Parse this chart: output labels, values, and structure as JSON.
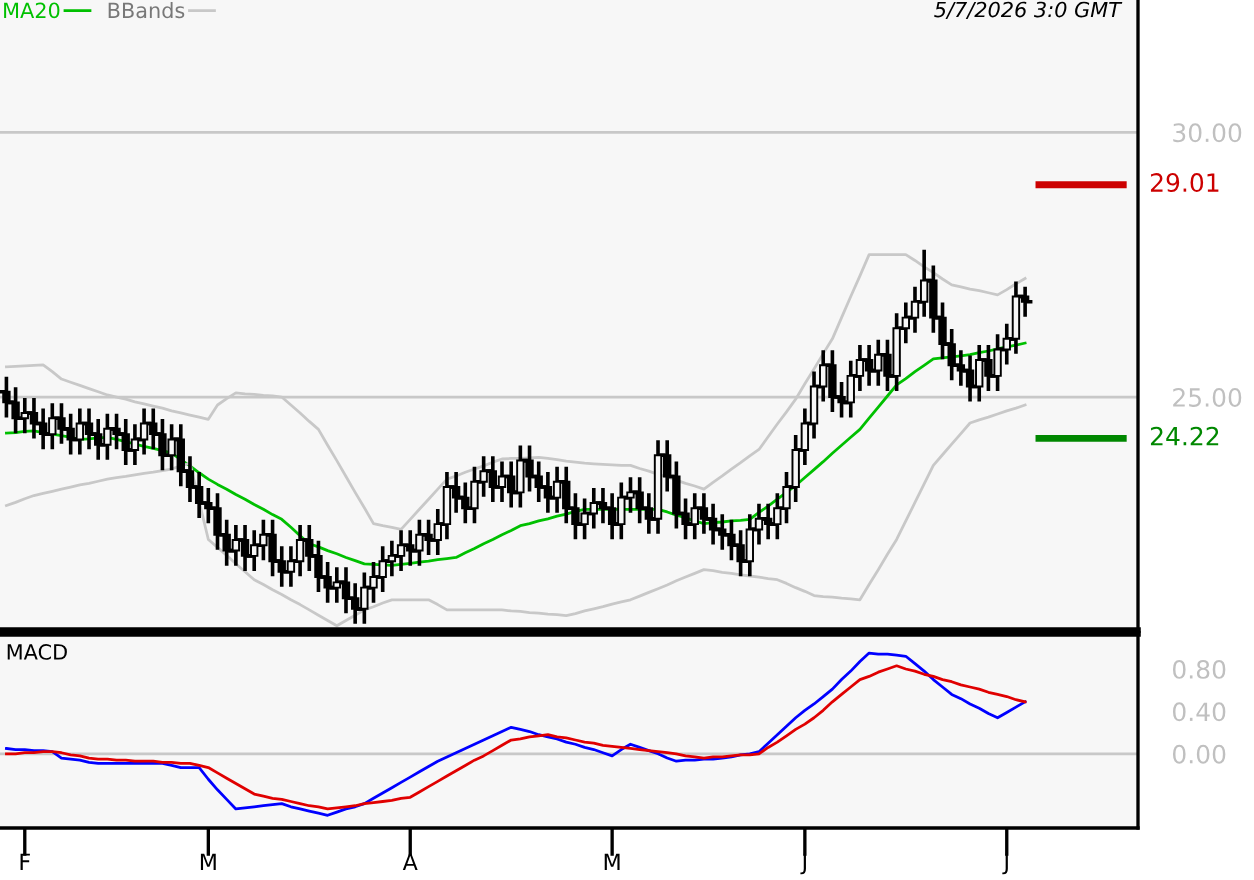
{
  "chart_data": [
    {
      "type": "candlestick",
      "categories": [
        null,
        null,
        null,
        null,
        null,
        null,
        null,
        null,
        null,
        null,
        null,
        null,
        null,
        null,
        null,
        null,
        null,
        null,
        null,
        null,
        null,
        null,
        null,
        null,
        null,
        null,
        null,
        null,
        null,
        null,
        null,
        null,
        null,
        null,
        null,
        null,
        null,
        null,
        null,
        null,
        null,
        null,
        null,
        null,
        null,
        null,
        null,
        null,
        null,
        null,
        null,
        null,
        null,
        null,
        null,
        null,
        null,
        null,
        null,
        null,
        null,
        null,
        null,
        null,
        null,
        null,
        null,
        null,
        null,
        null,
        null,
        null,
        null,
        null,
        null,
        null,
        null,
        null,
        null,
        null,
        null,
        null,
        null,
        null,
        null,
        null,
        null,
        null,
        null,
        null,
        null,
        null,
        null,
        null,
        null,
        null,
        null,
        null,
        null,
        null,
        null,
        null,
        null,
        null,
        null,
        null,
        null,
        null,
        null,
        null,
        null,
        null
      ],
      "ohlc": [
        [
          25.1,
          25.35,
          24.65,
          24.9
        ],
        [
          24.9,
          25.15,
          24.35,
          24.6
        ],
        [
          24.6,
          24.95,
          24.35,
          24.7
        ],
        [
          24.7,
          24.95,
          24.25,
          24.5
        ],
        [
          24.5,
          24.75,
          24.05,
          24.3
        ],
        [
          24.3,
          24.85,
          24.05,
          24.6
        ],
        [
          24.6,
          24.85,
          24.15,
          24.4
        ],
        [
          24.4,
          24.65,
          23.95,
          24.2
        ],
        [
          24.2,
          24.75,
          23.95,
          24.5
        ],
        [
          24.5,
          24.75,
          24.05,
          24.3
        ],
        [
          24.3,
          24.55,
          23.85,
          24.1
        ],
        [
          24.1,
          24.65,
          23.85,
          24.4
        ],
        [
          24.4,
          24.65,
          24.05,
          24.3
        ],
        [
          24.3,
          24.55,
          23.75,
          24.0
        ],
        [
          24.0,
          24.45,
          23.75,
          24.2
        ],
        [
          24.2,
          24.75,
          23.95,
          24.5
        ],
        [
          24.5,
          24.75,
          24.05,
          24.3
        ],
        [
          24.3,
          24.55,
          23.65,
          23.9
        ],
        [
          23.9,
          24.45,
          23.65,
          24.2
        ],
        [
          24.2,
          24.45,
          23.35,
          23.6
        ],
        [
          23.6,
          23.85,
          23.05,
          23.3
        ],
        [
          23.3,
          23.55,
          22.75,
          23.0
        ],
        [
          23.0,
          23.25,
          22.65,
          22.9
        ],
        [
          22.9,
          23.15,
          22.15,
          22.4
        ],
        [
          22.4,
          22.65,
          21.85,
          22.1
        ],
        [
          22.1,
          22.55,
          21.85,
          22.3
        ],
        [
          22.3,
          22.55,
          21.75,
          22.0
        ],
        [
          22.0,
          22.45,
          21.75,
          22.2
        ],
        [
          22.2,
          22.65,
          21.95,
          22.4
        ],
        [
          22.4,
          22.65,
          21.65,
          21.9
        ],
        [
          21.9,
          22.15,
          21.45,
          21.7
        ],
        [
          21.7,
          22.15,
          21.45,
          21.9
        ],
        [
          21.9,
          22.55,
          21.65,
          22.3
        ],
        [
          22.3,
          22.55,
          21.75,
          22.0
        ],
        [
          22.0,
          22.25,
          21.35,
          21.6
        ],
        [
          21.6,
          21.85,
          21.15,
          21.4
        ],
        [
          21.4,
          21.75,
          21.15,
          21.5
        ],
        [
          21.5,
          21.75,
          20.95,
          21.2
        ],
        [
          21.2,
          21.45,
          20.75,
          21.0
        ],
        [
          21.0,
          21.65,
          20.75,
          21.4
        ],
        [
          21.4,
          21.85,
          21.15,
          21.6
        ],
        [
          21.6,
          22.15,
          21.35,
          21.9
        ],
        [
          21.9,
          22.25,
          21.65,
          22.0
        ],
        [
          22.0,
          22.45,
          21.75,
          22.2
        ],
        [
          22.2,
          22.45,
          21.85,
          22.1
        ],
        [
          22.1,
          22.65,
          21.85,
          22.4
        ],
        [
          22.4,
          22.65,
          22.05,
          22.3
        ],
        [
          22.3,
          22.85,
          22.05,
          22.6
        ],
        [
          22.6,
          23.55,
          22.35,
          23.3
        ],
        [
          23.3,
          23.55,
          22.85,
          23.1
        ],
        [
          23.1,
          23.35,
          22.65,
          22.9
        ],
        [
          22.9,
          23.65,
          22.65,
          23.4
        ],
        [
          23.4,
          23.85,
          23.15,
          23.6
        ],
        [
          23.6,
          23.85,
          23.05,
          23.3
        ],
        [
          23.3,
          23.75,
          23.05,
          23.5
        ],
        [
          23.5,
          23.75,
          22.95,
          23.2
        ],
        [
          23.2,
          24.05,
          22.95,
          23.8
        ],
        [
          23.8,
          24.05,
          23.25,
          23.5
        ],
        [
          23.5,
          23.75,
          23.05,
          23.3
        ],
        [
          23.3,
          23.55,
          22.85,
          23.1
        ],
        [
          23.1,
          23.65,
          22.85,
          23.4
        ],
        [
          23.4,
          23.65,
          22.65,
          22.9
        ],
        [
          22.9,
          23.15,
          22.35,
          22.6
        ],
        [
          22.6,
          23.05,
          22.35,
          22.8
        ],
        [
          22.8,
          23.25,
          22.55,
          23.0
        ],
        [
          23.0,
          23.25,
          22.65,
          22.9
        ],
        [
          22.9,
          23.15,
          22.35,
          22.6
        ],
        [
          22.6,
          23.35,
          22.35,
          23.1
        ],
        [
          23.1,
          23.45,
          22.85,
          23.2
        ],
        [
          23.2,
          23.45,
          22.65,
          22.9
        ],
        [
          22.9,
          23.15,
          22.45,
          22.7
        ],
        [
          22.7,
          24.15,
          22.45,
          23.9
        ],
        [
          23.9,
          24.15,
          23.25,
          23.5
        ],
        [
          23.5,
          23.75,
          22.55,
          22.8
        ],
        [
          22.8,
          23.05,
          22.35,
          22.6
        ],
        [
          22.6,
          23.15,
          22.35,
          22.9
        ],
        [
          22.9,
          23.15,
          22.45,
          22.7
        ],
        [
          22.7,
          22.95,
          22.25,
          22.5
        ],
        [
          22.5,
          22.75,
          22.15,
          22.4
        ],
        [
          22.4,
          22.65,
          21.95,
          22.2
        ],
        [
          22.2,
          22.45,
          21.65,
          21.9
        ],
        [
          21.9,
          22.75,
          21.65,
          22.5
        ],
        [
          22.5,
          22.95,
          22.25,
          22.7
        ],
        [
          22.7,
          22.95,
          22.35,
          22.6
        ],
        [
          22.6,
          23.15,
          22.35,
          22.9
        ],
        [
          22.9,
          23.55,
          22.65,
          23.3
        ],
        [
          23.3,
          24.25,
          23.05,
          24.0
        ],
        [
          24.0,
          24.75,
          23.75,
          24.5
        ],
        [
          24.5,
          25.45,
          24.25,
          25.2
        ],
        [
          25.2,
          25.85,
          24.95,
          25.6
        ],
        [
          25.6,
          25.85,
          24.75,
          25.0
        ],
        [
          25.0,
          25.25,
          24.65,
          24.9
        ],
        [
          24.9,
          25.65,
          24.65,
          25.4
        ],
        [
          25.4,
          25.95,
          25.15,
          25.7
        ],
        [
          25.7,
          25.95,
          25.25,
          25.5
        ],
        [
          25.5,
          26.05,
          25.25,
          25.8
        ],
        [
          25.8,
          26.05,
          25.15,
          25.4
        ],
        [
          25.4,
          26.55,
          25.15,
          26.3
        ],
        [
          26.3,
          26.75,
          26.05,
          26.5
        ],
        [
          26.5,
          27.05,
          26.25,
          26.8
        ],
        [
          26.8,
          27.75,
          26.55,
          27.2
        ],
        [
          27.2,
          27.45,
          26.25,
          26.5
        ],
        [
          26.5,
          26.75,
          25.75,
          26.0
        ],
        [
          26.0,
          26.25,
          25.35,
          25.6
        ],
        [
          25.6,
          25.85,
          25.25,
          25.5
        ],
        [
          25.5,
          25.75,
          24.95,
          25.2
        ],
        [
          25.2,
          25.95,
          24.95,
          25.7
        ],
        [
          25.7,
          25.95,
          25.15,
          25.4
        ],
        [
          25.4,
          26.15,
          25.15,
          25.9
        ],
        [
          25.9,
          26.35,
          25.65,
          26.1
        ],
        [
          26.1,
          27.15,
          25.85,
          26.9
        ],
        [
          26.9,
          27.05,
          26.55,
          26.8
        ]
      ],
      "color": "#000000",
      "series": [
        {
          "name": "MA20",
          "type": "line",
          "color": "#00c000",
          "values": [
            24.32,
            24.33,
            24.35,
            24.36,
            24.33,
            24.3,
            24.27,
            24.24,
            24.2,
            24.21,
            24.23,
            24.24,
            24.2,
            24.16,
            24.11,
            24.07,
            24.03,
            23.99,
            23.94,
            23.82,
            23.7,
            23.57,
            23.45,
            23.35,
            23.26,
            23.16,
            23.07,
            22.97,
            22.88,
            22.78,
            22.69,
            22.54,
            22.38,
            22.23,
            22.17,
            22.1,
            22.04,
            21.97,
            21.91,
            21.85,
            21.84,
            21.83,
            21.82,
            21.84,
            21.86,
            21.88,
            21.9,
            21.93,
            21.95,
            21.97,
            22.06,
            22.14,
            22.23,
            22.31,
            22.4,
            22.48,
            22.57,
            22.61,
            22.66,
            22.7,
            22.75,
            22.79,
            22.84,
            22.88,
            22.88,
            22.88,
            22.88,
            22.88,
            22.88,
            22.88,
            22.88,
            22.88,
            22.83,
            22.77,
            22.72,
            22.66,
            22.61,
            22.63,
            22.64,
            22.66,
            22.67,
            22.69,
            22.82,
            22.94,
            23.07,
            23.2,
            23.33,
            23.48,
            23.63,
            23.78,
            23.94,
            24.09,
            24.24,
            24.39,
            24.6,
            24.81,
            25.02,
            25.23,
            25.35,
            25.48,
            25.6,
            25.72,
            25.74,
            25.76,
            25.78,
            25.8,
            25.84,
            25.87,
            25.91,
            25.95,
            25.98,
            26.02
          ]
        },
        {
          "name": "BBands",
          "type": "line",
          "color": "#c8c8c8",
          "values": [
            25.57,
            25.58,
            25.59,
            25.6,
            25.61,
            25.48,
            25.34,
            25.28,
            25.22,
            25.16,
            25.1,
            25.04,
            25.0,
            24.96,
            24.91,
            24.87,
            24.83,
            24.79,
            24.74,
            24.7,
            24.66,
            24.62,
            24.58,
            24.85,
            24.97,
            25.08,
            25.06,
            25.05,
            25.03,
            25.02,
            25.0,
            24.85,
            24.7,
            24.54,
            24.39,
            24.09,
            23.8,
            23.5,
            23.2,
            22.91,
            22.61,
            22.57,
            22.54,
            22.5,
            22.69,
            22.88,
            23.07,
            23.26,
            23.45,
            23.51,
            23.58,
            23.64,
            23.7,
            23.77,
            23.83,
            23.84,
            23.84,
            23.85,
            23.86,
            23.84,
            23.82,
            23.79,
            23.77,
            23.75,
            23.74,
            23.73,
            23.72,
            23.71,
            23.71,
            23.65,
            23.6,
            23.54,
            23.49,
            23.43,
            23.37,
            23.32,
            23.26,
            23.39,
            23.51,
            23.64,
            23.76,
            23.89,
            24.01,
            24.25,
            24.49,
            24.72,
            24.96,
            25.25,
            25.53,
            25.82,
            26.1,
            26.5,
            26.9,
            27.29,
            27.69,
            27.69,
            27.69,
            27.69,
            27.69,
            27.58,
            27.46,
            27.35,
            27.23,
            27.12,
            27.08,
            27.04,
            27.01,
            26.97,
            26.93,
            27.03,
            27.14,
            27.24
          ]
        },
        {
          "type": "line",
          "color": "#c8c8c8",
          "values": [
            22.95,
            23.01,
            23.08,
            23.14,
            23.18,
            23.22,
            23.26,
            23.3,
            23.34,
            23.37,
            23.41,
            23.45,
            23.48,
            23.5,
            23.53,
            23.56,
            23.58,
            23.61,
            23.64,
            23.7,
            23.75,
            23.03,
            22.31,
            22.16,
            22.01,
            21.85,
            21.7,
            21.55,
            21.46,
            21.36,
            21.27,
            21.17,
            21.08,
            20.98,
            20.88,
            20.78,
            20.68,
            20.78,
            20.88,
            20.98,
            21.04,
            21.11,
            21.17,
            21.17,
            21.17,
            21.17,
            21.17,
            21.08,
            20.98,
            20.98,
            20.98,
            20.98,
            20.98,
            20.98,
            20.98,
            20.96,
            20.95,
            20.93,
            20.92,
            20.9,
            20.89,
            20.87,
            20.91,
            20.96,
            21.0,
            21.04,
            21.09,
            21.13,
            21.17,
            21.24,
            21.31,
            21.38,
            21.45,
            21.53,
            21.6,
            21.67,
            21.74,
            21.72,
            21.69,
            21.67,
            21.64,
            21.62,
            21.6,
            21.57,
            21.55,
            21.48,
            21.4,
            21.33,
            21.25,
            21.23,
            21.22,
            21.2,
            21.19,
            21.17,
            21.46,
            21.74,
            22.03,
            22.31,
            22.66,
            23.01,
            23.36,
            23.71,
            23.91,
            24.11,
            24.31,
            24.51,
            24.57,
            24.62,
            24.68,
            24.74,
            24.79,
            24.85
          ]
        }
      ],
      "ylim": [
        20.6,
        32.5
      ],
      "yticks": [
        {
          "value": 25,
          "label": "25.00"
        },
        {
          "value": 30,
          "label": "30.00"
        }
      ],
      "tick_labels": "y",
      "grid": "y",
      "legend": "top left",
      "ref_lines": [
        {
          "axis": "y",
          "value": 29.01,
          "label": "29.01",
          "color": "#cc0000"
        },
        {
          "axis": "y",
          "value": 24.22,
          "label": "24.22",
          "color": "#008800"
        }
      ],
      "annotations": [
        "5/7/2026 3:0 GMT"
      ]
    },
    {
      "type": "line",
      "title": "MACD",
      "categories": [
        null,
        null,
        "F",
        null,
        null,
        null,
        null,
        null,
        null,
        null,
        null,
        null,
        null,
        null,
        null,
        null,
        null,
        null,
        null,
        null,
        null,
        null,
        "M",
        null,
        null,
        null,
        null,
        null,
        null,
        null,
        null,
        null,
        null,
        null,
        null,
        null,
        null,
        null,
        null,
        null,
        null,
        null,
        null,
        null,
        "A",
        null,
        null,
        null,
        null,
        null,
        null,
        null,
        null,
        null,
        null,
        null,
        null,
        null,
        null,
        null,
        null,
        null,
        null,
        null,
        null,
        null,
        "M",
        null,
        null,
        null,
        null,
        null,
        null,
        null,
        null,
        null,
        null,
        null,
        null,
        null,
        null,
        null,
        null,
        null,
        null,
        null,
        null,
        "J",
        null,
        null,
        null,
        null,
        null,
        null,
        null,
        null,
        null,
        null,
        null,
        null,
        null,
        null,
        null,
        null,
        null,
        null,
        null,
        null,
        null,
        "J",
        null,
        null
      ],
      "series": [
        {
          "type": "line",
          "color": "#0000ff",
          "values": [
            0.05,
            0.04,
            0.04,
            0.03,
            0.03,
            0.02,
            -0.04,
            -0.05,
            -0.06,
            -0.08,
            -0.09,
            -0.09,
            -0.09,
            -0.09,
            -0.09,
            -0.09,
            -0.09,
            -0.09,
            -0.11,
            -0.13,
            -0.13,
            -0.13,
            -0.24,
            -0.34,
            -0.43,
            -0.52,
            -0.51,
            -0.5,
            -0.49,
            -0.48,
            -0.47,
            -0.5,
            -0.52,
            -0.54,
            -0.56,
            -0.58,
            -0.55,
            -0.52,
            -0.5,
            -0.47,
            -0.42,
            -0.37,
            -0.32,
            -0.27,
            -0.22,
            -0.17,
            -0.12,
            -0.07,
            -0.03,
            0.01,
            0.05,
            0.09,
            0.13,
            0.17,
            0.21,
            0.25,
            0.23,
            0.21,
            0.18,
            0.16,
            0.14,
            0.11,
            0.09,
            0.06,
            0.04,
            0.01,
            -0.02,
            0.04,
            0.09,
            0.06,
            0.03,
            0.0,
            -0.04,
            -0.07,
            -0.06,
            -0.06,
            -0.05,
            -0.05,
            -0.04,
            -0.03,
            -0.01,
            0.0,
            0.02,
            0.1,
            0.18,
            0.26,
            0.34,
            0.41,
            0.47,
            0.54,
            0.61,
            0.7,
            0.78,
            0.87,
            0.95,
            0.94,
            0.94,
            0.93,
            0.92,
            0.85,
            0.78,
            0.7,
            0.63,
            0.56,
            0.52,
            0.47,
            0.43,
            0.38,
            0.34,
            0.39,
            0.44,
            0.49
          ]
        },
        {
          "type": "line",
          "color": "#e00000",
          "values": [
            0.0,
            0.0,
            0.01,
            0.01,
            0.02,
            0.02,
            0.01,
            -0.01,
            -0.02,
            -0.04,
            -0.05,
            -0.05,
            -0.06,
            -0.06,
            -0.07,
            -0.07,
            -0.07,
            -0.08,
            -0.08,
            -0.09,
            -0.09,
            -0.11,
            -0.13,
            -0.18,
            -0.23,
            -0.28,
            -0.33,
            -0.38,
            -0.4,
            -0.42,
            -0.43,
            -0.45,
            -0.47,
            -0.49,
            -0.5,
            -0.52,
            -0.51,
            -0.5,
            -0.49,
            -0.47,
            -0.46,
            -0.45,
            -0.44,
            -0.42,
            -0.41,
            -0.36,
            -0.31,
            -0.26,
            -0.21,
            -0.16,
            -0.11,
            -0.06,
            -0.02,
            0.03,
            0.08,
            0.13,
            0.14,
            0.16,
            0.17,
            0.18,
            0.16,
            0.15,
            0.13,
            0.11,
            0.1,
            0.08,
            0.07,
            0.06,
            0.05,
            0.04,
            0.03,
            0.02,
            0.01,
            0.0,
            -0.02,
            -0.03,
            -0.04,
            -0.03,
            -0.03,
            -0.02,
            -0.01,
            -0.01,
            0.0,
            0.06,
            0.11,
            0.17,
            0.23,
            0.28,
            0.34,
            0.41,
            0.49,
            0.56,
            0.63,
            0.7,
            0.73,
            0.77,
            0.8,
            0.83,
            0.8,
            0.78,
            0.75,
            0.73,
            0.7,
            0.68,
            0.65,
            0.63,
            0.61,
            0.58,
            0.56,
            0.54,
            0.51,
            0.49
          ]
        }
      ],
      "ylim": [
        -0.7,
        1.13
      ],
      "yticks": [
        {
          "value": 0,
          "label": "0.00"
        },
        {
          "value": 0.4,
          "label": "0.40"
        },
        {
          "value": 0.8,
          "label": "0.80"
        }
      ],
      "ref_lines": [
        {
          "axis": "y",
          "value": 0,
          "color": "#c8c8c8"
        }
      ]
    }
  ]
}
